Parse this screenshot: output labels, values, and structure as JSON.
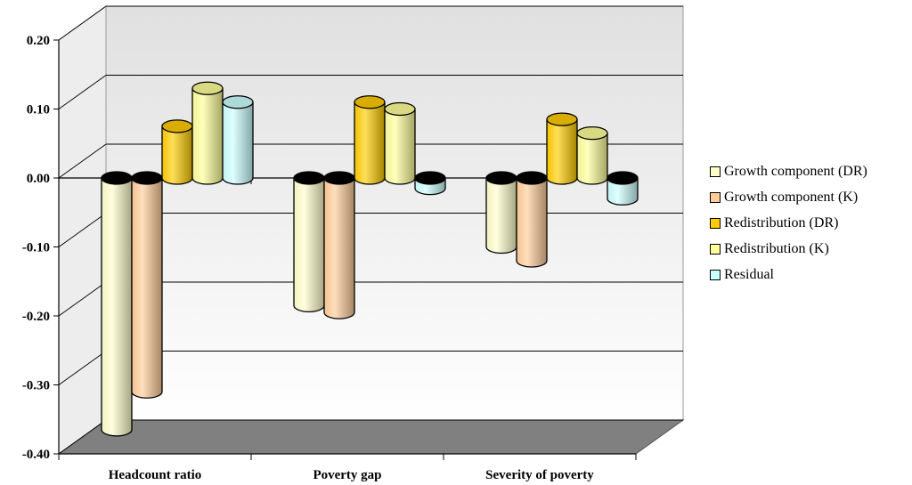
{
  "chart_data": {
    "type": "bar",
    "style": "3d-cylinder",
    "categories": [
      "Headcount ratio",
      "Poverty gap",
      "Severity of poverty"
    ],
    "series": [
      {
        "name": "Growth component (DR)",
        "color": "#ffffcc",
        "values": [
          -0.365,
          -0.185,
          -0.1
        ]
      },
      {
        "name": "Growth component (K)",
        "color": "#ffcc99",
        "values": [
          -0.31,
          -0.195,
          -0.12
        ]
      },
      {
        "name": "Redistribution (DR)",
        "color": "#ffcc00",
        "values": [
          0.075,
          0.11,
          0.085
        ]
      },
      {
        "name": "Redistribution (K)",
        "color": "#ffff99",
        "values": [
          0.13,
          0.1,
          0.065
        ]
      },
      {
        "name": "Residual",
        "color": "#ccffff",
        "values": [
          0.11,
          -0.015,
          -0.03
        ]
      }
    ],
    "yticks": [
      "0.20",
      "0.10",
      "0.00",
      "-0.10",
      "-0.20",
      "-0.30",
      "-0.40"
    ],
    "ylim": [
      -0.4,
      0.2
    ],
    "grid": true,
    "legend_position": "right",
    "floor_color": "#808080",
    "wall_color": "#ffffff"
  }
}
